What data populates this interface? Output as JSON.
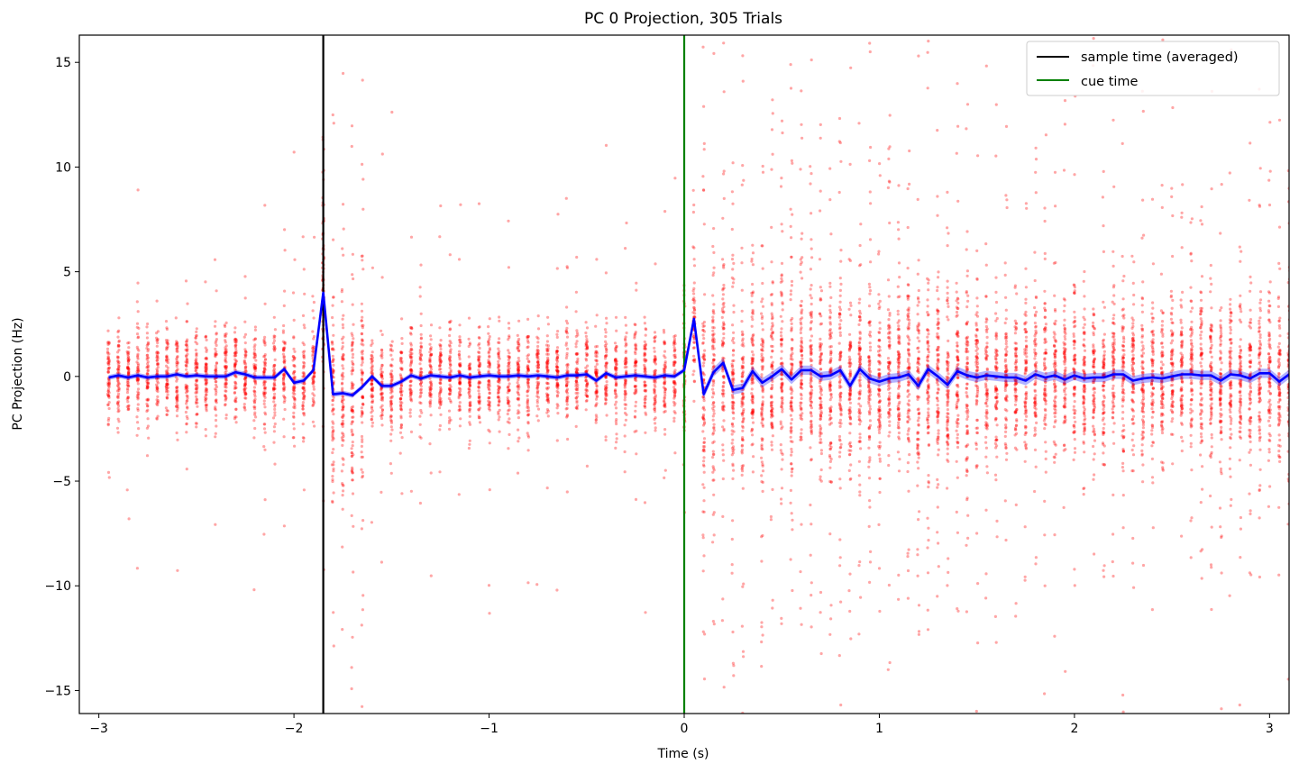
{
  "chart_data": {
    "type": "scatter",
    "title": "PC 0 Projection, 305 Trials",
    "xlabel": "Time (s)",
    "ylabel": "PC Projection (Hz)",
    "xlim": [
      -3.1,
      3.1
    ],
    "ylim": [
      -16.1,
      16.3
    ],
    "x_ticks": [
      -3,
      -2,
      -1,
      0,
      1,
      2,
      3
    ],
    "x_tick_labels": [
      "−3",
      "−2",
      "−1",
      "0",
      "1",
      "2",
      "3"
    ],
    "y_ticks": [
      -15,
      -10,
      -5,
      0,
      5,
      10,
      15
    ],
    "y_tick_labels": [
      "−15",
      "−10",
      "−5",
      "0",
      "5",
      "10",
      "15"
    ],
    "grid": false,
    "legend_position": "top-right",
    "colors": {
      "scatter": "#ff0000",
      "mean_line": "#0000ff",
      "sample_line": "#000000",
      "cue_line": "#008000"
    },
    "time_bin_start": -2.95,
    "time_bin_step": 0.05,
    "trial_count": 305,
    "vertical_lines": [
      {
        "name": "sample time (averaged)",
        "x": -1.85,
        "color": "#000000"
      },
      {
        "name": "cue time",
        "x": 0.0,
        "color": "#008000"
      }
    ],
    "series": [
      {
        "name": "",
        "kind": "line",
        "color": "#0000ff",
        "x": [
          -2.95,
          -2.9,
          -2.85,
          -2.8,
          -2.75,
          -2.7,
          -2.65,
          -2.6,
          -2.55,
          -2.5,
          -2.45,
          -2.4,
          -2.35,
          -2.3,
          -2.25,
          -2.2,
          -2.15,
          -2.1,
          -2.05,
          -2.0,
          -1.95,
          -1.9,
          -1.85,
          -1.8,
          -1.75,
          -1.7,
          -1.65,
          -1.6,
          -1.55,
          -1.5,
          -1.45,
          -1.4,
          -1.35,
          -1.3,
          -1.25,
          -1.2,
          -1.15,
          -1.1,
          -1.05,
          -1.0,
          -0.95,
          -0.9,
          -0.85,
          -0.8,
          -0.75,
          -0.7,
          -0.65,
          -0.6,
          -0.55,
          -0.5,
          -0.45,
          -0.4,
          -0.35,
          -0.3,
          -0.25,
          -0.2,
          -0.15,
          -0.1,
          -0.05,
          0.0,
          0.05,
          0.1,
          0.15,
          0.2,
          0.25,
          0.3,
          0.35,
          0.4,
          0.45,
          0.5,
          0.55,
          0.6,
          0.65,
          0.7,
          0.75,
          0.8,
          0.85,
          0.9,
          0.95,
          1.0,
          1.05,
          1.1,
          1.15,
          1.2,
          1.25,
          1.3,
          1.35,
          1.4,
          1.45,
          1.5,
          1.55,
          1.6,
          1.65,
          1.7,
          1.75,
          1.8,
          1.85,
          1.9,
          1.95,
          2.0,
          2.05,
          2.1,
          2.15,
          2.2,
          2.25,
          2.3,
          2.35,
          2.4,
          2.45,
          2.5,
          2.55,
          2.6,
          2.65,
          2.7,
          2.75,
          2.8,
          2.85,
          2.9,
          2.95,
          3.0,
          3.05,
          3.1
        ],
        "values": [
          -0.05,
          0.05,
          -0.05,
          0.05,
          -0.05,
          0.0,
          0.0,
          0.1,
          0.0,
          0.05,
          0.0,
          0.0,
          0.0,
          0.2,
          0.1,
          -0.05,
          -0.05,
          -0.05,
          0.35,
          -0.3,
          -0.2,
          0.3,
          4.0,
          -0.85,
          -0.8,
          -0.9,
          -0.5,
          0.0,
          -0.45,
          -0.45,
          -0.25,
          0.05,
          -0.1,
          0.05,
          0.0,
          -0.05,
          0.05,
          -0.05,
          0.0,
          0.05,
          0.0,
          0.0,
          0.05,
          0.0,
          0.05,
          0.0,
          -0.05,
          0.05,
          0.05,
          0.1,
          -0.2,
          0.15,
          -0.05,
          0.0,
          0.05,
          0.0,
          -0.05,
          0.05,
          0.0,
          0.3,
          2.75,
          -0.85,
          0.2,
          0.65,
          -0.65,
          -0.55,
          0.25,
          -0.3,
          0.0,
          0.35,
          -0.15,
          0.3,
          0.3,
          0.0,
          0.05,
          0.3,
          -0.45,
          0.35,
          -0.1,
          -0.25,
          -0.1,
          -0.05,
          0.1,
          -0.45,
          0.35,
          0.0,
          -0.4,
          0.25,
          0.05,
          -0.05,
          0.05,
          0.0,
          -0.05,
          -0.05,
          -0.2,
          0.1,
          -0.05,
          0.05,
          -0.15,
          0.05,
          -0.1,
          -0.05,
          -0.05,
          0.1,
          0.1,
          -0.2,
          -0.1,
          -0.05,
          -0.1,
          0.0,
          0.1,
          0.1,
          0.05,
          0.05,
          -0.2,
          0.1,
          0.05,
          -0.1,
          0.15,
          0.15,
          -0.25,
          0.1
        ]
      }
    ]
  }
}
